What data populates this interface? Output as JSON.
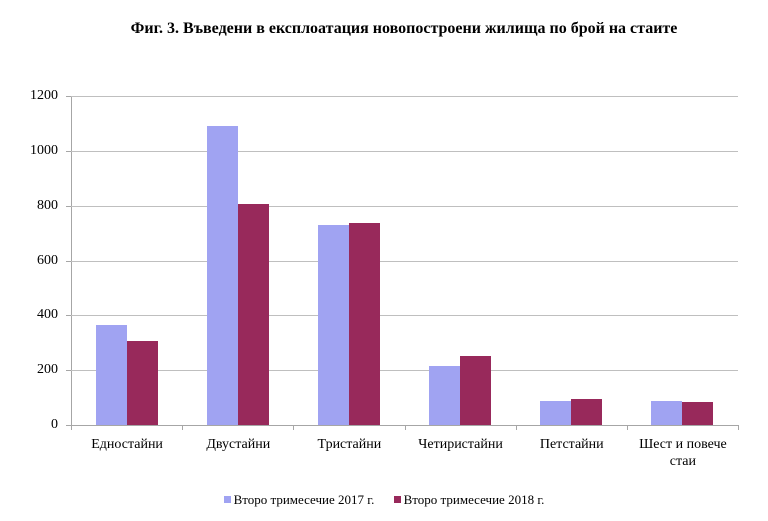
{
  "title": "Фиг. 3. Въведени в експлоатация новопостроени жилища по брой на стаите",
  "colors": {
    "series_2017": "#a0a3f2",
    "series_2018": "#98295b",
    "grid": "#bfbfbf"
  },
  "legend": [
    {
      "label": "Второ тримесечие 2017 г.",
      "color": "#a0a3f2"
    },
    {
      "label": "Второ тримесечие 2018 г.",
      "color": "#98295b"
    }
  ],
  "y_ticks": [
    "0",
    "200",
    "400",
    "600",
    "800",
    "1000",
    "1200"
  ],
  "chart_data": {
    "type": "bar",
    "title": "Фиг. 3. Въведени в експлоатация новопостроени жилища по брой на стаите",
    "xlabel": "",
    "ylabel": "",
    "ylim": [
      0,
      1200
    ],
    "grid": true,
    "legend_position": "bottom",
    "categories": [
      "Едностайни",
      "Двустайни",
      "Тристайни",
      "Четиристайни",
      "Петстайни",
      "Шест и повече стаи"
    ],
    "series": [
      {
        "name": "Второ тримесечие 2017 г.",
        "values": [
          365,
          1092,
          730,
          215,
          88,
          88
        ]
      },
      {
        "name": "Второ тримесечие 2018 г.",
        "values": [
          307,
          807,
          737,
          252,
          95,
          84
        ]
      }
    ]
  }
}
